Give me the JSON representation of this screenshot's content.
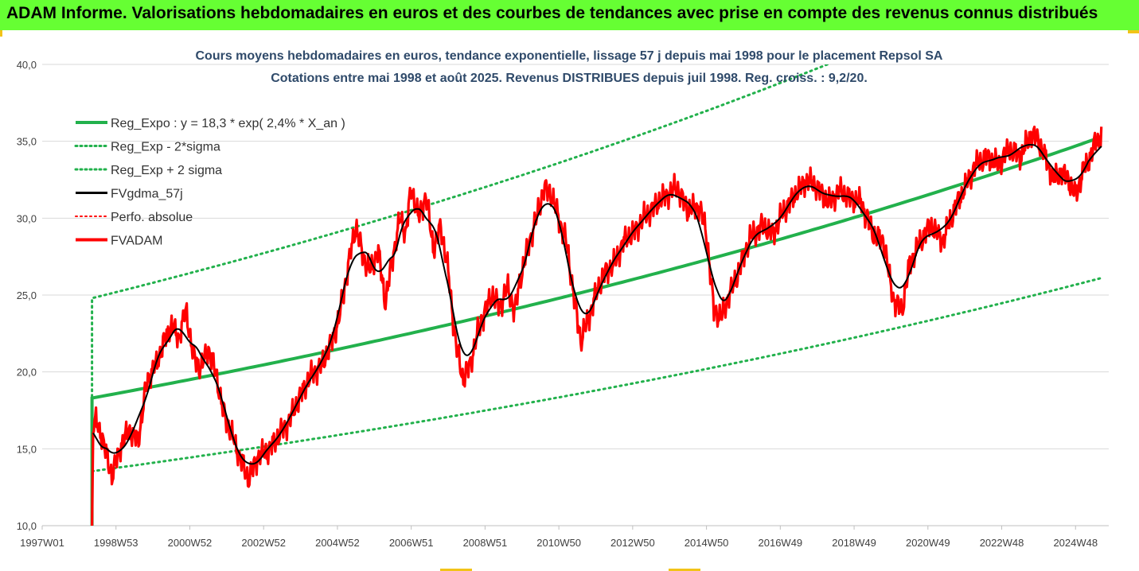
{
  "banner": {
    "title": "ADAM Informe. Valorisations hebdomadaires en euros et des courbes de tendances avec prise en compte des revenus connus distribués"
  },
  "colors": {
    "banner_bg": "#66ff33",
    "trend_green": "#22b14c",
    "band_green": "#22b14c",
    "smoothed_black": "#000000",
    "price_red": "#ff0000",
    "gridline": "#d9d9d9",
    "corner_marks": "#f2c318"
  },
  "chart_data": {
    "type": "line",
    "title": "Cours moyens hebdomadaires en euros, tendance exponentielle, lissage 57 j depuis mai 1998 pour le placement Repsol SA",
    "subtitle": "Cotations entre mai 1998 et août 2025. Revenus DISTRIBUES depuis juil 1998. Reg. croiss. : 9,2/20.",
    "xlabel": "",
    "ylabel": "",
    "x_range": [
      1997.0,
      2025.9
    ],
    "ylim": [
      10,
      40
    ],
    "y_ticks": [
      "10,0",
      "15,0",
      "20,0",
      "25,0",
      "30,0",
      "35,0",
      "40,0"
    ],
    "y_tick_values": [
      10,
      15,
      20,
      25,
      30,
      35,
      40
    ],
    "x_tick_labels": [
      "1997W01",
      "1998W53",
      "2000W52",
      "2002W52",
      "2004W52",
      "2006W51",
      "2008W51",
      "2010W50",
      "2012W50",
      "2014W50",
      "2016W49",
      "2018W49",
      "2020W49",
      "2022W48",
      "2024W48"
    ],
    "x_tick_values": [
      1997.0,
      1999.0,
      2001.0,
      2003.0,
      2005.0,
      2007.0,
      2009.0,
      2011.0,
      2013.0,
      2015.0,
      2017.0,
      2019.0,
      2021.0,
      2023.0,
      2025.0
    ],
    "grid": "horizontal",
    "legend_position": "top-left",
    "regression": {
      "start": 1998.35,
      "end": 2025.7,
      "a": 18.3,
      "growth": 0.024,
      "band_low_factor": 0.74,
      "band_high_factor": 1.355
    },
    "series": [
      {
        "name": "Reg_Expo : y = 18,3 * exp( 2,4% *  X_an )",
        "style": "solid",
        "color": "#22b14c",
        "x": [
          1998.35,
          2025.7
        ],
        "kind": "exp_trend"
      },
      {
        "name": "Reg_Exp - 2*sigma",
        "style": "dotted",
        "color": "#22b14c",
        "x": [
          1998.35,
          2025.7
        ],
        "kind": "exp_low"
      },
      {
        "name": "Reg_Exp + 2 sigma",
        "style": "dotted",
        "color": "#22b14c",
        "x": [
          1998.35,
          2025.7
        ],
        "kind": "exp_high"
      },
      {
        "name": "FVgdma_57j",
        "style": "solid",
        "color": "#000000",
        "kind": "smoothed"
      },
      {
        "name": "Perfo. absolue",
        "style": "dotted",
        "color": "#ff0000",
        "kind": "none"
      },
      {
        "name": "FVADAM",
        "style": "solid",
        "color": "#ff0000",
        "kind": "price"
      }
    ],
    "price_keypoints": {
      "x": [
        1998.35,
        1998.38,
        1998.45,
        1998.6,
        1998.75,
        1998.9,
        1999.1,
        1999.35,
        1999.6,
        1999.85,
        2000.1,
        2000.3,
        2000.5,
        2000.7,
        2000.9,
        2001.1,
        2001.3,
        2001.5,
        2001.7,
        2001.9,
        2002.1,
        2002.35,
        2002.6,
        2002.85,
        2003.1,
        2003.4,
        2003.7,
        2004.0,
        2004.3,
        2004.6,
        2004.85,
        2005.05,
        2005.3,
        2005.5,
        2005.7,
        2005.9,
        2006.1,
        2006.3,
        2006.5,
        2006.7,
        2006.85,
        2007.0,
        2007.2,
        2007.4,
        2007.6,
        2007.8,
        2008.0,
        2008.2,
        2008.4,
        2008.6,
        2008.8,
        2009.0,
        2009.2,
        2009.4,
        2009.6,
        2009.8,
        2010.0,
        2010.2,
        2010.4,
        2010.6,
        2010.8,
        2011.0,
        2011.2,
        2011.4,
        2011.6,
        2011.8,
        2012.0,
        2012.25,
        2012.5,
        2012.75,
        2013.0,
        2013.3,
        2013.6,
        2013.9,
        2014.2,
        2014.5,
        2014.8,
        2015.0,
        2015.2,
        2015.4,
        2015.6,
        2015.8,
        2016.0,
        2016.2,
        2016.5,
        2016.8,
        2017.1,
        2017.4,
        2017.7,
        2018.0,
        2018.3,
        2018.6,
        2018.9,
        2019.2,
        2019.5,
        2019.8,
        2020.0,
        2020.1,
        2020.3,
        2020.5,
        2020.7,
        2020.9,
        2021.1,
        2021.4,
        2021.7,
        2022.0,
        2022.3,
        2022.6,
        2022.9,
        2023.2,
        2023.5,
        2023.8,
        2024.0,
        2024.2,
        2024.4,
        2024.6,
        2024.8,
        2025.0,
        2025.2,
        2025.4,
        2025.55,
        2025.7
      ],
      "y": [
        10.0,
        16.5,
        16.8,
        16.0,
        14.5,
        13.2,
        15.0,
        16.2,
        15.5,
        19.5,
        20.5,
        22.0,
        23.0,
        22.2,
        24.0,
        21.0,
        20.2,
        21.5,
        20.0,
        17.5,
        16.2,
        14.5,
        13.0,
        14.5,
        14.8,
        15.8,
        16.8,
        18.5,
        19.8,
        20.5,
        22.0,
        23.5,
        27.0,
        29.5,
        27.5,
        26.5,
        28.0,
        24.5,
        27.5,
        30.0,
        29.0,
        32.0,
        30.0,
        31.5,
        28.0,
        29.5,
        26.5,
        22.0,
        19.5,
        20.5,
        22.5,
        24.0,
        25.0,
        24.2,
        25.5,
        24.0,
        26.5,
        28.5,
        30.0,
        32.0,
        31.5,
        30.0,
        28.5,
        25.0,
        22.0,
        23.5,
        25.0,
        26.5,
        27.0,
        28.5,
        29.0,
        30.0,
        30.8,
        31.5,
        32.0,
        30.5,
        30.8,
        29.0,
        24.0,
        23.5,
        25.0,
        26.0,
        27.5,
        28.8,
        29.5,
        29.0,
        30.5,
        31.5,
        32.5,
        32.0,
        31.0,
        31.8,
        31.3,
        31.0,
        29.0,
        28.5,
        25.5,
        24.5,
        24.0,
        27.0,
        28.0,
        29.0,
        29.5,
        28.5,
        30.5,
        32.0,
        33.5,
        34.0,
        33.5,
        34.5,
        34.0,
        35.5,
        35.0,
        33.8,
        32.5,
        33.0,
        32.5,
        31.5,
        33.0,
        34.0,
        35.0,
        35.3
      ],
      "wiggle": 0.9
    }
  },
  "legend": {
    "items": [
      {
        "label": "Reg_Expo : y = 18,3 * exp( 2,4% *  X_an )",
        "style": "solid",
        "color": "#22b14c",
        "width": 4
      },
      {
        "label": "Reg_Exp - 2*sigma",
        "style": "dotted",
        "color": "#22b14c",
        "width": 3
      },
      {
        "label": "Reg_Exp + 2 sigma",
        "style": "dotted",
        "color": "#22b14c",
        "width": 3
      },
      {
        "label": "FVgdma_57j",
        "style": "solid",
        "color": "#000000",
        "width": 3
      },
      {
        "label": "Perfo. absolue",
        "style": "dotted",
        "color": "#ff0000",
        "width": 2
      },
      {
        "label": "FVADAM",
        "style": "solid",
        "color": "#ff0000",
        "width": 4
      }
    ]
  }
}
